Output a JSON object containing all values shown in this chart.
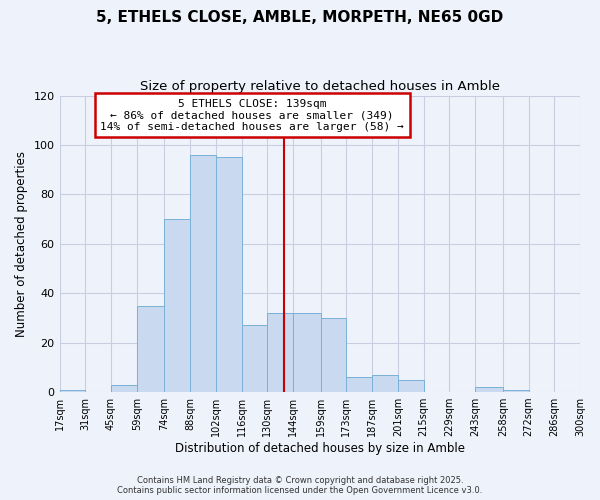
{
  "title": "5, ETHELS CLOSE, AMBLE, MORPETH, NE65 0GD",
  "subtitle": "Size of property relative to detached houses in Amble",
  "xlabel": "Distribution of detached houses by size in Amble",
  "ylabel": "Number of detached properties",
  "bar_labels": [
    "17sqm",
    "31sqm",
    "45sqm",
    "59sqm",
    "74sqm",
    "88sqm",
    "102sqm",
    "116sqm",
    "130sqm",
    "144sqm",
    "159sqm",
    "173sqm",
    "187sqm",
    "201sqm",
    "215sqm",
    "229sqm",
    "243sqm",
    "258sqm",
    "272sqm",
    "286sqm",
    "300sqm"
  ],
  "bar_heights": [
    1,
    0,
    3,
    35,
    70,
    96,
    95,
    27,
    32,
    32,
    30,
    6,
    7,
    5,
    0,
    0,
    2,
    1,
    0,
    0,
    1
  ],
  "bar_color": "#c8d9f0",
  "bar_edge_color": "#7ab0d8",
  "bin_edges": [
    17,
    31,
    45,
    59,
    74,
    88,
    102,
    116,
    130,
    144,
    159,
    173,
    187,
    201,
    215,
    229,
    243,
    258,
    272,
    286,
    300
  ],
  "vline_x": 139,
  "vline_color": "#cc0000",
  "ylim": [
    0,
    120
  ],
  "yticks": [
    0,
    20,
    40,
    60,
    80,
    100,
    120
  ],
  "annotation_title": "5 ETHELS CLOSE: 139sqm",
  "annotation_line1": "← 86% of detached houses are smaller (349)",
  "annotation_line2": "14% of semi-detached houses are larger (58) →",
  "footer_line1": "Contains HM Land Registry data © Crown copyright and database right 2025.",
  "footer_line2": "Contains public sector information licensed under the Open Government Licence v3.0.",
  "background_color": "#eef2fb",
  "grid_color": "#d8dff0",
  "title_fontsize": 11,
  "subtitle_fontsize": 9.5
}
